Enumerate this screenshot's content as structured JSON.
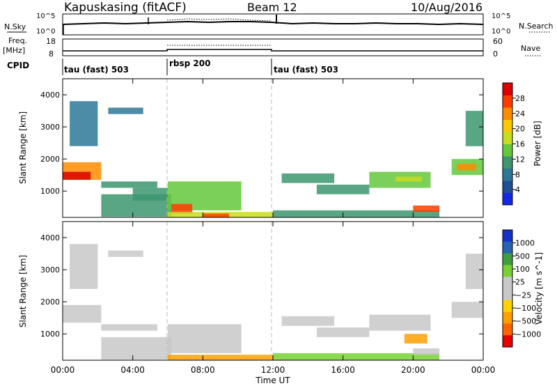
{
  "header": {
    "station": "Kapuskasing (fitACF)",
    "beam": "Beam 12",
    "date": "10/Aug/2016"
  },
  "noise_panel": {
    "left_label": "N.Sky",
    "right_label": "N.Search",
    "left_ticks": [
      "10^5",
      "10^0"
    ],
    "right_ticks": [
      "10^5",
      "10^0"
    ]
  },
  "freq_panel": {
    "left_label_1": "Freq.",
    "left_label_2": "[MHz]",
    "right_label": "Nave",
    "left_ticks": [
      "18",
      "8"
    ],
    "right_ticks": [
      "60",
      "0"
    ]
  },
  "cpid_panel": {
    "label": "CPID",
    "segments": [
      {
        "label": "tau (fast) 503",
        "start_hour": 0,
        "end_hour": 6
      },
      {
        "label": "rbsp 200",
        "start_hour": 6,
        "end_hour": 12
      },
      {
        "label": "tau (fast) 503",
        "start_hour": 12,
        "end_hour": 24
      }
    ]
  },
  "x_axis": {
    "label": "Time UT",
    "ticks": [
      "00:00",
      "04:00",
      "08:00",
      "12:00",
      "16:00",
      "20:00",
      "00:00"
    ]
  },
  "chart_data": [
    {
      "type": "heatmap",
      "title": "",
      "xlabel": "Time UT",
      "ylabel": "Slant Range [km]",
      "x_range_hours": [
        0,
        24
      ],
      "ylim": [
        180,
        4500
      ],
      "y_ticks": [
        1000,
        2000,
        3000,
        4000
      ],
      "colorbar": {
        "label": "Power [dB]",
        "ticks": [
          "4",
          "8",
          "12",
          "16",
          "20",
          "24",
          "28"
        ],
        "colors": [
          "#1428e6",
          "#1e5096",
          "#2d7896",
          "#3c966e",
          "#64c83c",
          "#c8dc1e",
          "#ffc800",
          "#ff8c00",
          "#ff3c00",
          "#dc0000"
        ]
      },
      "echo_regions": [
        {
          "t0": 0.0,
          "t1": 2.2,
          "r0": 1350,
          "r1": 1900,
          "level": 7
        },
        {
          "t0": 0.0,
          "t1": 1.6,
          "r0": 1350,
          "r1": 1600,
          "level": 9
        },
        {
          "t0": 0.4,
          "t1": 2.0,
          "r0": 2400,
          "r1": 3800,
          "level": 2
        },
        {
          "t0": 2.6,
          "t1": 4.6,
          "r0": 3400,
          "r1": 3600,
          "level": 2
        },
        {
          "t0": 2.2,
          "t1": 5.4,
          "r0": 1100,
          "r1": 1300,
          "level": 3
        },
        {
          "t0": 2.2,
          "t1": 6.2,
          "r0": 200,
          "r1": 900,
          "level": 3
        },
        {
          "t0": 4.0,
          "t1": 6.0,
          "r0": 700,
          "r1": 1100,
          "level": 3
        },
        {
          "t0": 6.0,
          "t1": 10.2,
          "r0": 400,
          "r1": 1300,
          "level": 4
        },
        {
          "t0": 6.2,
          "t1": 7.4,
          "r0": 300,
          "r1": 600,
          "level": 8
        },
        {
          "t0": 6.0,
          "t1": 12.0,
          "r0": 180,
          "r1": 350,
          "level": 5
        },
        {
          "t0": 8.0,
          "t1": 9.5,
          "r0": 180,
          "r1": 300,
          "level": 8
        },
        {
          "t0": 12.0,
          "t1": 21.5,
          "r0": 180,
          "r1": 400,
          "level": 3
        },
        {
          "t0": 12.5,
          "t1": 15.5,
          "r0": 1250,
          "r1": 1550,
          "level": 3
        },
        {
          "t0": 14.5,
          "t1": 17.5,
          "r0": 900,
          "r1": 1200,
          "level": 3
        },
        {
          "t0": 17.5,
          "t1": 21.0,
          "r0": 1100,
          "r1": 1600,
          "level": 4
        },
        {
          "t0": 19.0,
          "t1": 20.5,
          "r0": 1300,
          "r1": 1450,
          "level": 5
        },
        {
          "t0": 20.0,
          "t1": 21.5,
          "r0": 350,
          "r1": 550,
          "level": 8
        },
        {
          "t0": 22.2,
          "t1": 24.0,
          "r0": 1500,
          "r1": 2000,
          "level": 4
        },
        {
          "t0": 22.5,
          "t1": 23.6,
          "r0": 1650,
          "r1": 1850,
          "level": 7
        },
        {
          "t0": 23.0,
          "t1": 24.0,
          "r0": 2400,
          "r1": 3500,
          "level": 3
        }
      ]
    },
    {
      "type": "heatmap",
      "title": "",
      "xlabel": "Time UT",
      "ylabel": "Slant Range [km]",
      "x_range_hours": [
        0,
        24
      ],
      "ylim": [
        180,
        4500
      ],
      "y_ticks": [
        1000,
        2000,
        3000,
        4000
      ],
      "colorbar": {
        "label": "Velocity [m s^-1]",
        "ticks": [
          "1000",
          "500",
          "100",
          "25",
          "-25",
          "-100",
          "-500",
          "-1000"
        ],
        "colors": [
          "#1432c8",
          "#2864b4",
          "#3ca03c",
          "#78d232",
          "#c8c8c8",
          "#c8c8c8",
          "#ffd200",
          "#ffa000",
          "#ff6400",
          "#e60000"
        ]
      },
      "echo_regions": [
        {
          "t0": 0.0,
          "t1": 2.2,
          "r0": 1350,
          "r1": 1900,
          "level": 4
        },
        {
          "t0": 0.4,
          "t1": 2.0,
          "r0": 2400,
          "r1": 3800,
          "level": 4
        },
        {
          "t0": 2.6,
          "t1": 4.6,
          "r0": 3400,
          "r1": 3600,
          "level": 4
        },
        {
          "t0": 2.2,
          "t1": 5.4,
          "r0": 1100,
          "r1": 1300,
          "level": 4
        },
        {
          "t0": 2.2,
          "t1": 6.2,
          "r0": 200,
          "r1": 900,
          "level": 5
        },
        {
          "t0": 6.0,
          "t1": 10.2,
          "r0": 400,
          "r1": 1300,
          "level": 4
        },
        {
          "t0": 6.0,
          "t1": 12.0,
          "r0": 180,
          "r1": 350,
          "level": 7
        },
        {
          "t0": 12.0,
          "t1": 21.5,
          "r0": 180,
          "r1": 400,
          "level": 3
        },
        {
          "t0": 12.5,
          "t1": 15.5,
          "r0": 1250,
          "r1": 1550,
          "level": 4
        },
        {
          "t0": 14.5,
          "t1": 17.5,
          "r0": 900,
          "r1": 1200,
          "level": 4
        },
        {
          "t0": 17.5,
          "t1": 21.0,
          "r0": 1100,
          "r1": 1600,
          "level": 4
        },
        {
          "t0": 19.5,
          "t1": 20.8,
          "r0": 700,
          "r1": 1000,
          "level": 7
        },
        {
          "t0": 20.0,
          "t1": 21.5,
          "r0": 350,
          "r1": 550,
          "level": 5
        },
        {
          "t0": 22.2,
          "t1": 24.0,
          "r0": 1500,
          "r1": 2000,
          "level": 4
        },
        {
          "t0": 23.0,
          "t1": 24.0,
          "r0": 2400,
          "r1": 3500,
          "level": 4
        }
      ]
    }
  ]
}
